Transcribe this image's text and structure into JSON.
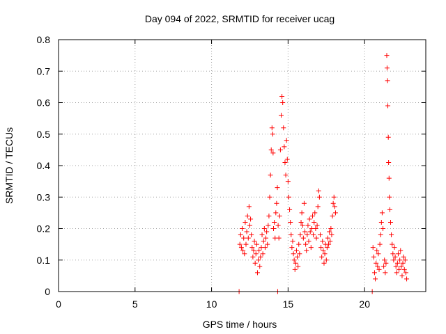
{
  "chart_data": {
    "type": "scatter",
    "title": "Day 094 of 2022, SRMTID for receiver ucag",
    "xlabel": "GPS time / hours",
    "ylabel": "SRMTID / TECUs",
    "xlim": [
      0,
      24
    ],
    "ylim": [
      0,
      0.8
    ],
    "xticks": [
      0,
      5,
      10,
      15,
      20
    ],
    "yticks": [
      0,
      0.1,
      0.2,
      0.3,
      0.4,
      0.5,
      0.6,
      0.7,
      0.8
    ],
    "xtick_labels": [
      "0",
      "5",
      "10",
      "15",
      "20"
    ],
    "ytick_labels": [
      "0",
      "0.1",
      "0.2",
      "0.3",
      "0.4",
      "0.5",
      "0.6",
      "0.7",
      "0.8"
    ],
    "grid": true,
    "marker": "+",
    "series": [
      {
        "name": "SRMTID",
        "color": "#ff0000",
        "points": [
          [
            11.8,
            0.0
          ],
          [
            11.85,
            0.15
          ],
          [
            11.9,
            0.18
          ],
          [
            11.95,
            0.14
          ],
          [
            12.0,
            0.2
          ],
          [
            12.05,
            0.13
          ],
          [
            12.1,
            0.17
          ],
          [
            12.15,
            0.12
          ],
          [
            12.2,
            0.22
          ],
          [
            12.25,
            0.15
          ],
          [
            12.3,
            0.19
          ],
          [
            12.35,
            0.24
          ],
          [
            12.4,
            0.17
          ],
          [
            12.45,
            0.27
          ],
          [
            12.5,
            0.21
          ],
          [
            12.55,
            0.23
          ],
          [
            12.6,
            0.18
          ],
          [
            12.65,
            0.14
          ],
          [
            12.7,
            0.11
          ],
          [
            12.75,
            0.13
          ],
          [
            12.8,
            0.16
          ],
          [
            12.85,
            0.09
          ],
          [
            12.9,
            0.12
          ],
          [
            12.95,
            0.15
          ],
          [
            13.0,
            0.06
          ],
          [
            13.05,
            0.1
          ],
          [
            13.1,
            0.13
          ],
          [
            13.15,
            0.08
          ],
          [
            13.2,
            0.11
          ],
          [
            13.25,
            0.14
          ],
          [
            13.3,
            0.18
          ],
          [
            13.35,
            0.12
          ],
          [
            13.4,
            0.16
          ],
          [
            13.45,
            0.2
          ],
          [
            13.5,
            0.14
          ],
          [
            13.55,
            0.17
          ],
          [
            13.6,
            0.19
          ],
          [
            13.65,
            0.15
          ],
          [
            13.7,
            0.21
          ],
          [
            13.75,
            0.24
          ],
          [
            13.8,
            0.3
          ],
          [
            13.85,
            0.37
          ],
          [
            13.9,
            0.45
          ],
          [
            13.95,
            0.52
          ],
          [
            14.0,
            0.5
          ],
          [
            14.02,
            0.44
          ],
          [
            14.05,
            0.2
          ],
          [
            14.1,
            0.22
          ],
          [
            14.15,
            0.17
          ],
          [
            14.2,
            0.25
          ],
          [
            14.25,
            0.28
          ],
          [
            14.3,
            0.33
          ],
          [
            14.32,
            0.0
          ],
          [
            14.35,
            0.21
          ],
          [
            14.4,
            0.17
          ],
          [
            14.45,
            0.24
          ],
          [
            14.5,
            0.45
          ],
          [
            14.55,
            0.56
          ],
          [
            14.6,
            0.62
          ],
          [
            14.65,
            0.6
          ],
          [
            14.7,
            0.52
          ],
          [
            14.75,
            0.46
          ],
          [
            14.8,
            0.41
          ],
          [
            14.85,
            0.37
          ],
          [
            14.9,
            0.48
          ],
          [
            14.95,
            0.42
          ],
          [
            15.0,
            0.35
          ],
          [
            15.05,
            0.3
          ],
          [
            15.1,
            0.26
          ],
          [
            15.15,
            0.22
          ],
          [
            15.2,
            0.18
          ],
          [
            15.25,
            0.14
          ],
          [
            15.3,
            0.16
          ],
          [
            15.35,
            0.12
          ],
          [
            15.4,
            0.1
          ],
          [
            15.45,
            0.07
          ],
          [
            15.5,
            0.09
          ],
          [
            15.55,
            0.13
          ],
          [
            15.6,
            0.11
          ],
          [
            15.65,
            0.08
          ],
          [
            15.7,
            0.15
          ],
          [
            15.75,
            0.12
          ],
          [
            15.8,
            0.18
          ],
          [
            15.85,
            0.22
          ],
          [
            15.9,
            0.25
          ],
          [
            15.95,
            0.21
          ],
          [
            16.0,
            0.17
          ],
          [
            16.05,
            0.28
          ],
          [
            16.1,
            0.19
          ],
          [
            16.15,
            0.15
          ],
          [
            16.2,
            0.13
          ],
          [
            16.25,
            0.18
          ],
          [
            16.3,
            0.21
          ],
          [
            16.35,
            0.16
          ],
          [
            16.4,
            0.23
          ],
          [
            16.45,
            0.19
          ],
          [
            16.5,
            0.14
          ],
          [
            16.55,
            0.2
          ],
          [
            16.6,
            0.24
          ],
          [
            16.65,
            0.18
          ],
          [
            16.7,
            0.22
          ],
          [
            16.75,
            0.25
          ],
          [
            16.8,
            0.2
          ],
          [
            16.85,
            0.17
          ],
          [
            16.9,
            0.21
          ],
          [
            16.95,
            0.27
          ],
          [
            17.0,
            0.32
          ],
          [
            17.05,
            0.3
          ],
          [
            17.1,
            0.18
          ],
          [
            17.15,
            0.14
          ],
          [
            17.2,
            0.11
          ],
          [
            17.25,
            0.16
          ],
          [
            17.3,
            0.13
          ],
          [
            17.35,
            0.09
          ],
          [
            17.4,
            0.12
          ],
          [
            17.45,
            0.15
          ],
          [
            17.5,
            0.1
          ],
          [
            17.55,
            0.14
          ],
          [
            17.6,
            0.17
          ],
          [
            17.65,
            0.15
          ],
          [
            17.7,
            0.19
          ],
          [
            17.75,
            0.16
          ],
          [
            17.8,
            0.2
          ],
          [
            17.85,
            0.18
          ],
          [
            17.9,
            0.24
          ],
          [
            17.95,
            0.28
          ],
          [
            18.0,
            0.3
          ],
          [
            18.05,
            0.27
          ],
          [
            18.1,
            0.25
          ],
          [
            20.5,
            0.0
          ],
          [
            20.55,
            0.14
          ],
          [
            20.6,
            0.11
          ],
          [
            20.65,
            0.06
          ],
          [
            20.7,
            0.04
          ],
          [
            20.75,
            0.09
          ],
          [
            20.8,
            0.13
          ],
          [
            20.85,
            0.08
          ],
          [
            20.9,
            0.12
          ],
          [
            20.95,
            0.07
          ],
          [
            21.0,
            0.15
          ],
          [
            21.05,
            0.18
          ],
          [
            21.1,
            0.22
          ],
          [
            21.15,
            0.25
          ],
          [
            21.2,
            0.2
          ],
          [
            21.25,
            0.08
          ],
          [
            21.3,
            0.1
          ],
          [
            21.35,
            0.06
          ],
          [
            21.4,
            0.09
          ],
          [
            21.45,
            0.75
          ],
          [
            21.47,
            0.71
          ],
          [
            21.5,
            0.67
          ],
          [
            21.52,
            0.59
          ],
          [
            21.55,
            0.49
          ],
          [
            21.57,
            0.41
          ],
          [
            21.6,
            0.36
          ],
          [
            21.62,
            0.3
          ],
          [
            21.65,
            0.26
          ],
          [
            21.7,
            0.22
          ],
          [
            21.75,
            0.18
          ],
          [
            21.8,
            0.15
          ],
          [
            21.85,
            0.12
          ],
          [
            21.9,
            0.1
          ],
          [
            21.95,
            0.14
          ],
          [
            22.0,
            0.11
          ],
          [
            22.05,
            0.08
          ],
          [
            22.1,
            0.06
          ],
          [
            22.15,
            0.09
          ],
          [
            22.2,
            0.12
          ],
          [
            22.25,
            0.07
          ],
          [
            22.3,
            0.1
          ],
          [
            22.35,
            0.13
          ],
          [
            22.4,
            0.08
          ],
          [
            22.45,
            0.05
          ],
          [
            22.5,
            0.09
          ],
          [
            22.55,
            0.11
          ],
          [
            22.6,
            0.07
          ],
          [
            22.65,
            0.1
          ],
          [
            22.7,
            0.06
          ],
          [
            22.75,
            0.04
          ]
        ]
      }
    ]
  }
}
